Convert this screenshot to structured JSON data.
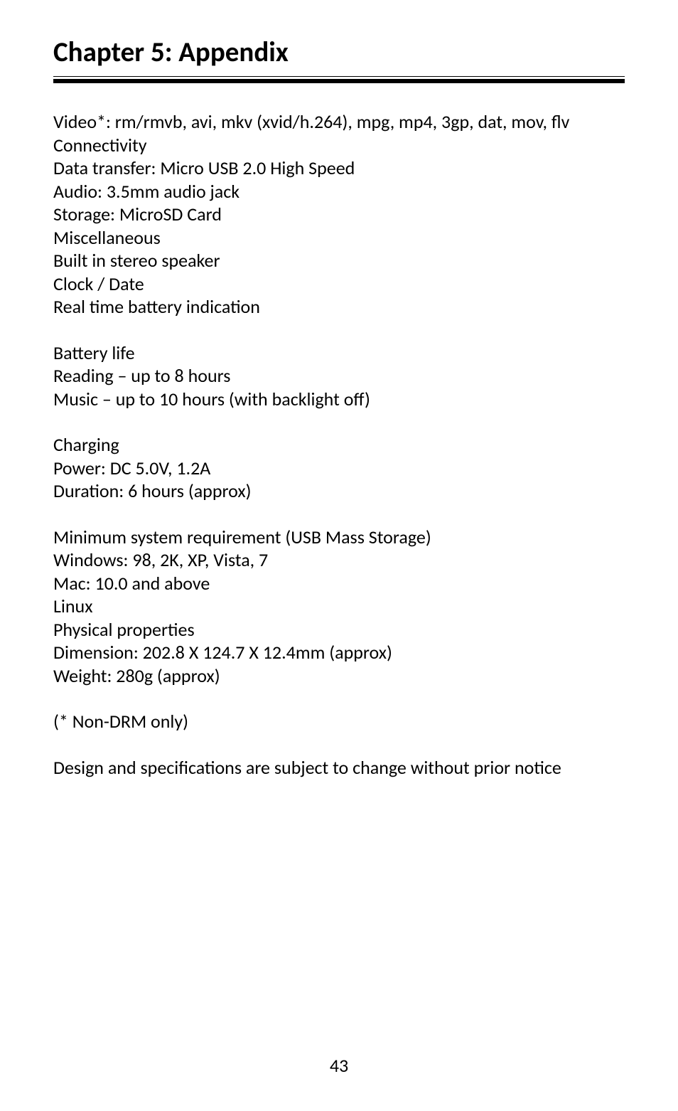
{
  "chapter": {
    "title": "Chapter 5: Appendix"
  },
  "block1": {
    "l1": "Video*: rm/rmvb, avi, mkv (xvid/h.264), mpg, mp4, 3gp, dat, mov, flv",
    "l2": "Connectivity",
    "l3": "Data transfer: Micro USB 2.0 High Speed",
    "l4": "Audio: 3.5mm audio jack",
    "l5": "Storage: MicroSD Card",
    "l6": "Miscellaneous",
    "l7": "Built in stereo speaker",
    "l8": "Clock / Date",
    "l9": "Real time battery indication"
  },
  "block2": {
    "l1": "Battery life",
    "l2": "Reading – up to 8 hours",
    "l3": "Music – up to 10 hours (with backlight off)"
  },
  "block3": {
    "l1": "Charging",
    "l2": "Power: DC 5.0V, 1.2A",
    "l3": "Duration: 6 hours (approx)"
  },
  "block4": {
    "l1": "Minimum system requirement (USB Mass Storage)",
    "l2": "Windows: 98, 2K, XP, Vista, 7",
    "l3": "Mac: 10.0 and above",
    "l4": "Linux",
    "l5": "Physical properties",
    "l6": "Dimension: 202.8 X 124.7 X 12.4mm (approx)",
    "l7": "Weight: 280g (approx)"
  },
  "block5": {
    "l1": "(* Non-DRM only)"
  },
  "block6": {
    "l1": "Design and specifications are subject to change without prior notice"
  },
  "page": {
    "number": "43"
  }
}
